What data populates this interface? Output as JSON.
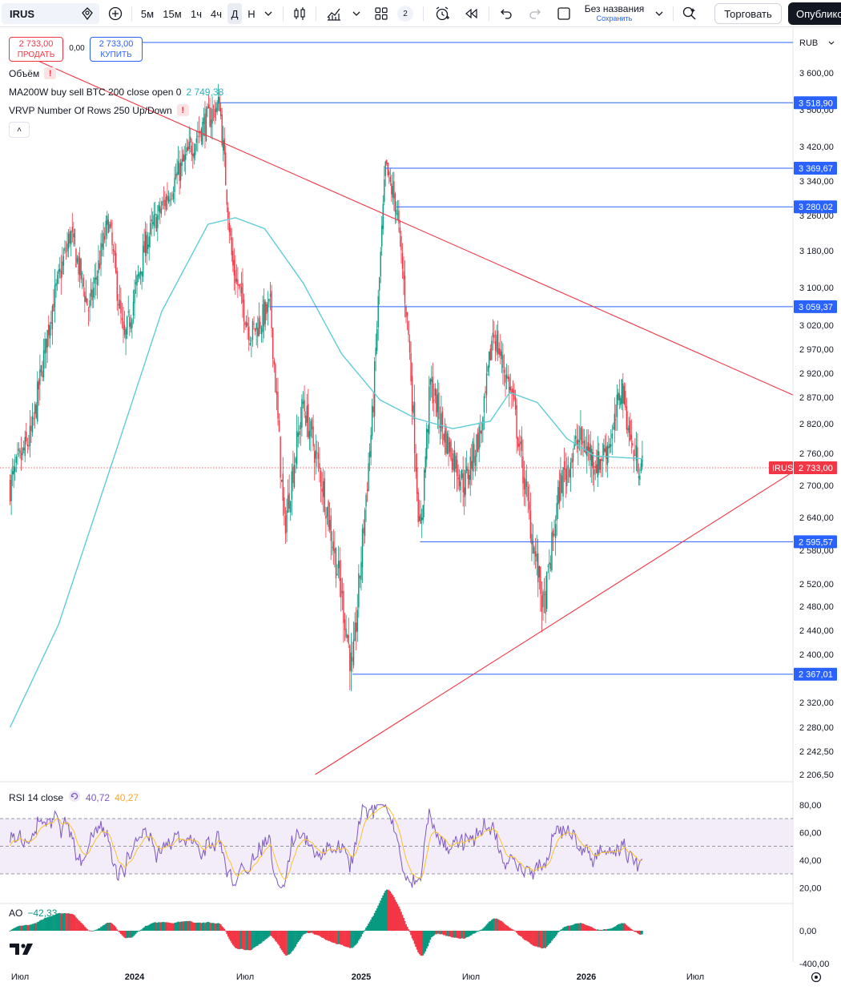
{
  "toolbar": {
    "symbol": "IRUS",
    "intervals": [
      "5м",
      "15м",
      "1ч",
      "4ч",
      "Д",
      "Н"
    ],
    "active_interval": "Д",
    "layout_badge": "2",
    "save_title": "Без названия",
    "save_sub": "Сохранить",
    "trade_label": "Торговать",
    "publish_label": "Опубликовать"
  },
  "legend": {
    "sell_price": "2 733,00",
    "sell_label": "ПРОДАТЬ",
    "spread": "0,00",
    "buy_price": "2 733,00",
    "buy_label": "КУПИТЬ",
    "volume_label": "Объём",
    "ma_label": "MA200W buy sell BTC 200 close open 0",
    "ma_value": "2 749,38",
    "vrvp_label": "VRVP Number Of Rows 250 Up/Down",
    "warn_glyph": "!",
    "collapse_glyph": "˄"
  },
  "rsi_legend": {
    "label": "RSI 14 close",
    "v1": "40,72",
    "v2": "40,27"
  },
  "ao_legend": {
    "label": "AO",
    "v1": "−42,33"
  },
  "currency": "RUB",
  "colors": {
    "up": "#089981",
    "down": "#f23645",
    "ma": "#5fcdd6",
    "hline": "#2962ff",
    "trend": "#f23645",
    "rsi": "#7e57c2",
    "rsi_ma": "#fbc02d",
    "rsi_band": "#ede7f6"
  },
  "chart_data": {
    "type": "candlestick",
    "symbol": "IRUS",
    "x_axis": {
      "ticks": [
        {
          "label": "Июл",
          "date": "2023-07-01"
        },
        {
          "label": "2024",
          "date": "2024-01-01"
        },
        {
          "label": "Июл",
          "date": "2024-07-01"
        },
        {
          "label": "2025",
          "date": "2025-01-01"
        },
        {
          "label": "Июл",
          "date": "2025-07-01"
        },
        {
          "label": "2026",
          "date": "2026-01-01"
        },
        {
          "label": "Июл",
          "date": "2026-07-01"
        }
      ]
    },
    "price_axis": {
      "ticks": [
        {
          "label": "3 600,00",
          "value": 3600
        },
        {
          "label": "3 500,00",
          "value": 3500
        },
        {
          "label": "3 420,00",
          "value": 3420
        },
        {
          "label": "3 340,00",
          "value": 3340
        },
        {
          "label": "3 260,00",
          "value": 3260
        },
        {
          "label": "3 180,00",
          "value": 3180
        },
        {
          "label": "3 100,00",
          "value": 3100
        },
        {
          "label": "3 020,00",
          "value": 3020
        },
        {
          "label": "2 970,00",
          "value": 2970
        },
        {
          "label": "2 920,00",
          "value": 2920
        },
        {
          "label": "2 870,00",
          "value": 2870
        },
        {
          "label": "2 820,00",
          "value": 2820
        },
        {
          "label": "2 760,00",
          "value": 2760
        },
        {
          "label": "2 700,00",
          "value": 2700
        },
        {
          "label": "2 640,00",
          "value": 2640
        },
        {
          "label": "2 580,00",
          "value": 2580
        },
        {
          "label": "2 520,00",
          "value": 2520
        },
        {
          "label": "2 480,00",
          "value": 2480
        },
        {
          "label": "2 440,00",
          "value": 2440
        },
        {
          "label": "2 400,00",
          "value": 2400
        },
        {
          "label": "2 320,00",
          "value": 2320
        },
        {
          "label": "2 280,00",
          "value": 2280
        },
        {
          "label": "2 242,50",
          "value": 2242.5
        },
        {
          "label": "2 206,50",
          "value": 2206.5
        }
      ]
    },
    "horizontal_levels": [
      {
        "label": "3 518,90",
        "value": 3518.9,
        "start": "2024-05-20"
      },
      {
        "label": "3 369,67",
        "value": 3369.67,
        "start": "2025-02-10"
      },
      {
        "label": "3 280,02",
        "value": 3280.02,
        "start": "2025-02-28"
      },
      {
        "label": "3 059,37",
        "value": 3059.37,
        "start": "2024-08-10"
      },
      {
        "label": "2 595,57",
        "value": 2595.57,
        "start": "2025-04-08"
      },
      {
        "label": "2 367,01",
        "value": 2367.01,
        "start": "2024-12-18"
      }
    ],
    "last_price": {
      "symbol_label": "IRUS",
      "label": "2 733,00",
      "value": 2733
    },
    "trendlines": [
      {
        "from": {
          "date": "2023-07-20",
          "value": 3640
        },
        "to": {
          "date": "2026-12-10",
          "value": 2875
        }
      },
      {
        "from": {
          "date": "2024-10-20",
          "value": 2206.5
        },
        "to": {
          "date": "2026-12-10",
          "value": 2725
        }
      }
    ],
    "price_path": [
      {
        "date": "2023-06-15",
        "value": 2700
      },
      {
        "date": "2023-07-20",
        "value": 2800
      },
      {
        "date": "2023-08-20",
        "value": 3050
      },
      {
        "date": "2023-09-20",
        "value": 3220
      },
      {
        "date": "2023-10-20",
        "value": 3050
      },
      {
        "date": "2023-11-20",
        "value": 3250
      },
      {
        "date": "2023-12-15",
        "value": 2980
      },
      {
        "date": "2024-01-20",
        "value": 3200
      },
      {
        "date": "2024-03-10",
        "value": 3350
      },
      {
        "date": "2024-04-15",
        "value": 3450
      },
      {
        "date": "2024-05-20",
        "value": 3518.9
      },
      {
        "date": "2024-06-10",
        "value": 3150
      },
      {
        "date": "2024-07-10",
        "value": 3000
      },
      {
        "date": "2024-08-10",
        "value": 3059
      },
      {
        "date": "2024-09-01",
        "value": 2620
      },
      {
        "date": "2024-10-01",
        "value": 2860
      },
      {
        "date": "2024-11-01",
        "value": 2700
      },
      {
        "date": "2024-12-01",
        "value": 2500
      },
      {
        "date": "2024-12-18",
        "value": 2367
      },
      {
        "date": "2025-01-20",
        "value": 2840
      },
      {
        "date": "2025-02-10",
        "value": 3369.67
      },
      {
        "date": "2025-02-28",
        "value": 3280
      },
      {
        "date": "2025-03-20",
        "value": 3000
      },
      {
        "date": "2025-04-08",
        "value": 2595.57
      },
      {
        "date": "2025-04-25",
        "value": 2900
      },
      {
        "date": "2025-05-20",
        "value": 2790
      },
      {
        "date": "2025-06-20",
        "value": 2700
      },
      {
        "date": "2025-07-20",
        "value": 2820
      },
      {
        "date": "2025-08-05",
        "value": 3010
      },
      {
        "date": "2025-09-05",
        "value": 2870
      },
      {
        "date": "2025-10-01",
        "value": 2650
      },
      {
        "date": "2025-10-25",
        "value": 2470
      },
      {
        "date": "2025-11-20",
        "value": 2700
      },
      {
        "date": "2025-12-20",
        "value": 2790
      },
      {
        "date": "2026-01-20",
        "value": 2740
      },
      {
        "date": "2026-02-15",
        "value": 2800
      },
      {
        "date": "2026-02-28",
        "value": 2900
      },
      {
        "date": "2026-03-20",
        "value": 2760
      },
      {
        "date": "2026-04-05",
        "value": 2733
      }
    ],
    "ma_path": [
      {
        "date": "2023-06-15",
        "value": 2280
      },
      {
        "date": "2023-09-01",
        "value": 2450
      },
      {
        "date": "2023-12-01",
        "value": 2760
      },
      {
        "date": "2024-02-15",
        "value": 3050
      },
      {
        "date": "2024-05-01",
        "value": 3240
      },
      {
        "date": "2024-06-15",
        "value": 3255
      },
      {
        "date": "2024-08-01",
        "value": 3230
      },
      {
        "date": "2024-10-01",
        "value": 3110
      },
      {
        "date": "2024-12-01",
        "value": 2960
      },
      {
        "date": "2025-02-01",
        "value": 2865
      },
      {
        "date": "2025-04-01",
        "value": 2830
      },
      {
        "date": "2025-06-01",
        "value": 2810
      },
      {
        "date": "2025-08-01",
        "value": 2825
      },
      {
        "date": "2025-09-01",
        "value": 2880
      },
      {
        "date": "2025-10-15",
        "value": 2860
      },
      {
        "date": "2025-12-01",
        "value": 2790
      },
      {
        "date": "2026-01-15",
        "value": 2755
      },
      {
        "date": "2026-04-05",
        "value": 2750
      }
    ],
    "rsi": {
      "label": "RSI 14 close",
      "ticks": [
        {
          "label": "80,00",
          "value": 80
        },
        {
          "label": "60,00",
          "value": 60
        },
        {
          "label": "40,00",
          "value": 40
        },
        {
          "label": "20,00",
          "value": 20
        }
      ],
      "bands": [
        70,
        50,
        30
      ],
      "current": 40.72,
      "ma_current": 40.27
    },
    "ao": {
      "label": "AO",
      "ticks": [
        {
          "label": "0,00",
          "value": 0
        },
        {
          "label": "-400,00",
          "value": -400
        }
      ],
      "current": -42.33
    }
  }
}
